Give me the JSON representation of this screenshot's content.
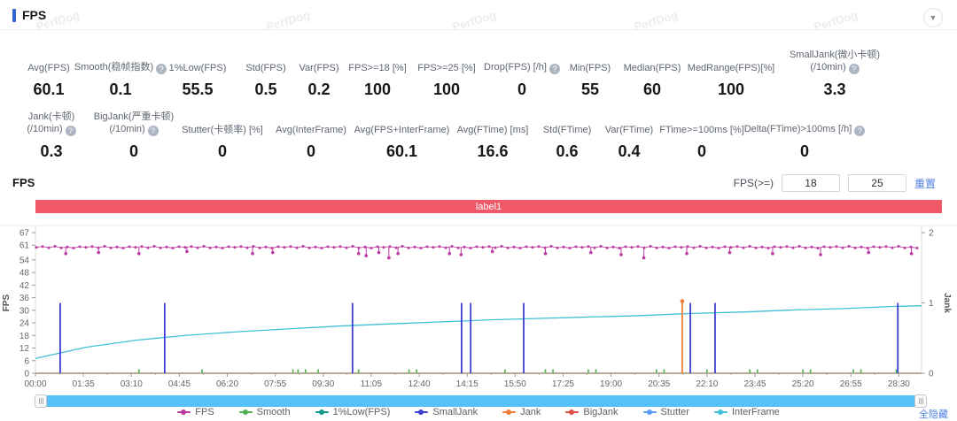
{
  "header": {
    "title": "FPS"
  },
  "watermark": {
    "text": "PerfDog"
  },
  "stats_rows": [
    [
      {
        "label": "Avg(FPS)",
        "value": "60.1"
      },
      {
        "label": "Smooth(稳帧指数)",
        "help": true,
        "value": "0.1"
      },
      {
        "label": "1%Low(FPS)",
        "value": "55.5"
      },
      {
        "label": "Std(FPS)",
        "value": "0.5"
      },
      {
        "label": "Var(FPS)",
        "value": "0.2"
      },
      {
        "label": "FPS>=18 [%]",
        "value": "100"
      },
      {
        "label": "FPS>=25 [%]",
        "value": "100"
      },
      {
        "label": "Drop(FPS) [/h]",
        "help": true,
        "value": "0"
      },
      {
        "label": "Min(FPS)",
        "value": "55"
      },
      {
        "label": "Median(FPS)",
        "value": "60"
      },
      {
        "label": "MedRange(FPS)[%]",
        "value": "100"
      },
      {
        "label": "SmallJank(微小卡顿)",
        "label2": "(/10min)",
        "help": true,
        "value": "3.3"
      }
    ],
    [
      {
        "label": "Jank(卡顿)",
        "label2": "(/10min)",
        "help": true,
        "value": "0.3"
      },
      {
        "label": "BigJank(严重卡顿)",
        "label2": "(/10min)",
        "help": true,
        "value": "0"
      },
      {
        "label": "Stutter(卡顿率) [%]",
        "value": "0"
      },
      {
        "label": "Avg(InterFrame)",
        "value": "0"
      },
      {
        "label": "Avg(FPS+InterFrame)",
        "value": "60.1"
      },
      {
        "label": "Avg(FTime) [ms]",
        "value": "16.6"
      },
      {
        "label": "Std(FTime)",
        "value": "0.6"
      },
      {
        "label": "Var(FTime)",
        "value": "0.4"
      },
      {
        "label": "FTime>=100ms [%]",
        "value": "0"
      },
      {
        "label": "Delta(FTime)>100ms [/h]",
        "help": true,
        "value": "0"
      }
    ]
  ],
  "chart_header": {
    "title": "FPS",
    "threshold_label": "FPS(>=)",
    "threshold1": "18",
    "threshold2": "25",
    "reset_label": "重置"
  },
  "banner": {
    "label": "label1"
  },
  "chart_data": {
    "type": "line",
    "title": "FPS",
    "x_ticks": [
      "00:00",
      "01:35",
      "03:10",
      "04:45",
      "06:20",
      "07:55",
      "09:30",
      "11:05",
      "12:40",
      "14:15",
      "15:50",
      "17:25",
      "19:00",
      "20:35",
      "22:10",
      "23:45",
      "25:20",
      "26:55",
      "28:30"
    ],
    "x_tick_interval_s": 95,
    "x_max_s": 1755,
    "left_axis": {
      "label": "FPS",
      "ticks": [
        0,
        6,
        12,
        18,
        24,
        30,
        36,
        42,
        48,
        54,
        61,
        67
      ],
      "max": 67
    },
    "right_axis": {
      "label": "Jank",
      "ticks": [
        0,
        1,
        2
      ],
      "max": 2
    },
    "legend": [
      {
        "name": "FPS",
        "color": "#bd3aa3"
      },
      {
        "name": "Smooth",
        "color": "#4caf50"
      },
      {
        "name": "1%Low(FPS)",
        "color": "#10998a"
      },
      {
        "name": "SmallJank",
        "color": "#3c3fd4"
      },
      {
        "name": "Jank",
        "color": "#ef7d33"
      },
      {
        "name": "BigJank",
        "color": "#e04b45"
      },
      {
        "name": "Stutter",
        "color": "#5b9cf8"
      },
      {
        "name": "InterFrame",
        "color": "#3ec0d5"
      }
    ],
    "series": {
      "fps": {
        "base": 60,
        "dips": [
          [
            60,
            57
          ],
          [
            125,
            57.5
          ],
          [
            205,
            57
          ],
          [
            300,
            58
          ],
          [
            430,
            57
          ],
          [
            470,
            57.5
          ],
          [
            640,
            57
          ],
          [
            655,
            56
          ],
          [
            680,
            57.5
          ],
          [
            700,
            55
          ],
          [
            718,
            57
          ],
          [
            820,
            57
          ],
          [
            843,
            56.5
          ],
          [
            905,
            58
          ],
          [
            1010,
            57
          ],
          [
            1100,
            57.5
          ],
          [
            1160,
            56.5
          ],
          [
            1205,
            55
          ],
          [
            1290,
            57
          ],
          [
            1375,
            57.5
          ],
          [
            1460,
            57
          ],
          [
            1555,
            56.5
          ],
          [
            1650,
            57.5
          ],
          [
            1735,
            57
          ]
        ]
      },
      "smalljank_spike_times_s": [
        49,
        256,
        628,
        844,
        862,
        967,
        1297,
        1346,
        1708
      ],
      "jank_spike_times_s": [
        1281
      ],
      "spike_value_right_axis": 1,
      "smooth_tick_times_s": [
        205,
        330,
        510,
        520,
        535,
        560,
        640,
        740,
        755,
        930,
        1010,
        1025,
        1095,
        1110,
        1230,
        1245,
        1330,
        1415,
        1430,
        1520,
        1535,
        1620,
        1635,
        1705
      ],
      "interframe": {
        "axis": "right",
        "points": [
          [
            0,
            0.21
          ],
          [
            100,
            0.37
          ],
          [
            200,
            0.47
          ],
          [
            300,
            0.54
          ],
          [
            400,
            0.59
          ],
          [
            500,
            0.63
          ],
          [
            600,
            0.67
          ],
          [
            700,
            0.7
          ],
          [
            800,
            0.73
          ],
          [
            900,
            0.76
          ],
          [
            1000,
            0.78
          ],
          [
            1100,
            0.8
          ],
          [
            1200,
            0.82
          ],
          [
            1300,
            0.85
          ],
          [
            1400,
            0.87
          ],
          [
            1500,
            0.9
          ],
          [
            1600,
            0.92
          ],
          [
            1700,
            0.95
          ],
          [
            1755,
            0.96
          ]
        ]
      }
    }
  },
  "legend_footer": {
    "hide_all": "全隐藏"
  }
}
